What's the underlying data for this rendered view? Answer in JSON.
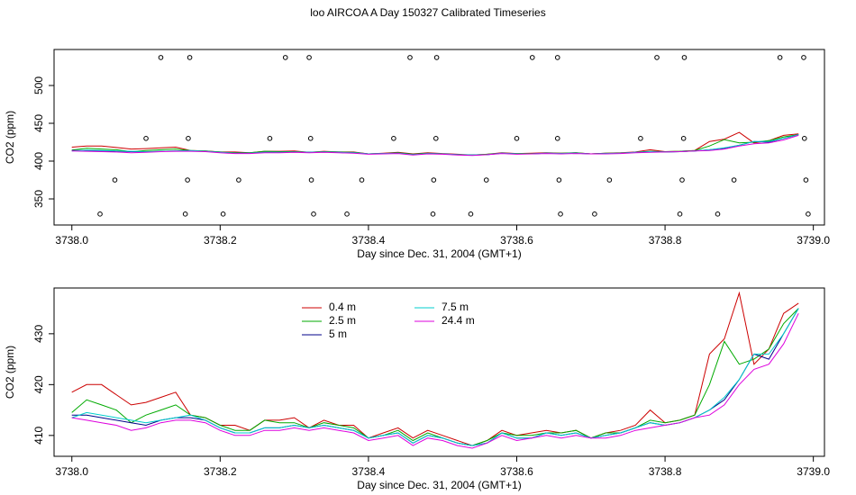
{
  "chart_data": [
    {
      "type": "line",
      "title": "loo AIRCOA A  Day 150327  Calibrated Timeseries",
      "xlabel": "Day since Dec. 31, 2004 (GMT+1)",
      "ylabel": "CO2 (ppm)",
      "xlim": [
        3737.976,
        3739.015
      ],
      "ylim": [
        315.5,
        547.6
      ],
      "xticks": [
        {
          "value": 3738,
          "label": "3738.0"
        },
        3738.2,
        3738.4,
        3738.6,
        3738.8,
        {
          "value": 3739,
          "label": "3739.0"
        }
      ],
      "yticks": [
        350,
        400,
        450,
        500
      ],
      "markers": {
        "x": [
          3738.12,
          3738.159,
          3738.288,
          3738.32,
          3738.456,
          3738.492,
          3738.621,
          3738.655,
          3738.789,
          3738.826,
          3738.955,
          3738.987,
          3738.1,
          3738.157,
          3738.267,
          3738.322,
          3738.434,
          3738.491,
          3738.6,
          3738.655,
          3738.767,
          3738.825,
          3738.988,
          3738.058,
          3738.156,
          3738.225,
          3738.323,
          3738.391,
          3738.488,
          3738.559,
          3738.657,
          3738.725,
          3738.823,
          3738.893,
          3738.99,
          3738.038,
          3738.153,
          3738.204,
          3738.326,
          3738.371,
          3738.487,
          3738.538,
          3738.659,
          3738.705,
          3738.82,
          3738.871,
          3738.993
        ],
        "y": [
          537,
          537,
          537,
          537,
          537,
          537,
          537,
          537,
          537,
          537,
          537,
          537,
          430,
          430,
          430,
          430,
          430,
          430,
          430,
          430,
          430,
          430,
          430,
          375,
          375,
          375,
          375,
          375,
          375,
          375,
          375,
          375,
          375,
          375,
          375,
          330,
          330,
          330,
          330,
          330,
          330,
          330,
          330,
          330,
          330,
          330,
          330
        ]
      }
    },
    {
      "type": "line",
      "xlabel": "Day since Dec. 31, 2004 (GMT+1)",
      "ylabel": "CO2 (ppm)",
      "xlim": [
        3737.976,
        3739.015
      ],
      "ylim": [
        405.9,
        439.0
      ],
      "xticks": [
        {
          "value": 3738,
          "label": "3738.0"
        },
        3738.2,
        3738.4,
        3738.6,
        3738.8,
        {
          "value": 3739,
          "label": "3739.0"
        }
      ],
      "yticks": [
        410,
        420,
        430
      ],
      "x": [
        3738.0,
        3738.02,
        3738.04,
        3738.06,
        3738.08,
        3738.1,
        3738.12,
        3738.14,
        3738.16,
        3738.18,
        3738.2,
        3738.22,
        3738.24,
        3738.26,
        3738.28,
        3738.3,
        3738.32,
        3738.34,
        3738.36,
        3738.38,
        3738.4,
        3738.42,
        3738.44,
        3738.46,
        3738.48,
        3738.5,
        3738.52,
        3738.54,
        3738.56,
        3738.58,
        3738.6,
        3738.62,
        3738.64,
        3738.66,
        3738.68,
        3738.7,
        3738.72,
        3738.74,
        3738.76,
        3738.78,
        3738.8,
        3738.82,
        3738.84,
        3738.86,
        3738.88,
        3738.9,
        3738.92,
        3738.94,
        3738.96,
        3738.98
      ],
      "series": [
        {
          "name": "0.4 m",
          "color": "#cc0000",
          "values": [
            418.5,
            420,
            420,
            418,
            416,
            416.5,
            417.5,
            418.5,
            414,
            413.5,
            412,
            412,
            411,
            413,
            413,
            413.5,
            411.5,
            413,
            412,
            412,
            409.5,
            410.5,
            411.5,
            409.5,
            411,
            410,
            409,
            408,
            409,
            411,
            410,
            410.5,
            411,
            410.5,
            411,
            409.5,
            410.5,
            411,
            412,
            415,
            412.5,
            413,
            414,
            426,
            429,
            438,
            424,
            427,
            434,
            436
          ]
        },
        {
          "name": "2.5 m",
          "color": "#00aa00",
          "values": [
            414.5,
            417,
            416,
            415,
            412.5,
            414,
            415,
            416,
            414,
            413.5,
            412,
            411,
            411,
            413,
            412.5,
            412.5,
            411.5,
            412.5,
            412,
            411.5,
            409.5,
            410,
            411,
            409,
            410.5,
            409.5,
            408.5,
            408,
            409,
            410.5,
            410,
            410,
            410.5,
            410.5,
            411,
            409.5,
            410.5,
            410.5,
            411.5,
            413,
            412.5,
            413,
            414,
            420,
            428.5,
            424,
            425,
            427,
            432,
            435
          ]
        },
        {
          "name": "5 m",
          "color": "#000088",
          "values": [
            414,
            414,
            413.5,
            413,
            412.5,
            412,
            413,
            413.5,
            413.5,
            413,
            411.5,
            410.5,
            410.5,
            411.5,
            411.5,
            412,
            411.5,
            412,
            411.5,
            411,
            409.5,
            410,
            410.5,
            408.5,
            410,
            409.5,
            408.5,
            408,
            408.5,
            410.5,
            409.5,
            409.5,
            410.5,
            410,
            410.5,
            409.5,
            410,
            410.5,
            411.5,
            412.5,
            412,
            412.5,
            413.5,
            415,
            417,
            421,
            426,
            425,
            430,
            435
          ]
        },
        {
          "name": "7.5 m",
          "color": "#00cccc",
          "values": [
            413.5,
            414.5,
            414,
            413.5,
            413,
            412.5,
            413,
            413.5,
            414,
            413,
            411.5,
            410.5,
            410.5,
            411.5,
            411.5,
            412,
            411.5,
            412,
            411.5,
            411,
            409.5,
            410,
            410.5,
            408.5,
            410,
            409.5,
            408.5,
            408,
            408.5,
            410.5,
            409.5,
            409.5,
            410.5,
            410,
            410.5,
            409.5,
            410,
            410.5,
            411.5,
            412.5,
            412,
            412.5,
            413.5,
            415,
            417.5,
            421,
            426,
            426,
            430,
            435
          ]
        },
        {
          "name": "24.4 m",
          "color": "#dd00dd",
          "values": [
            413.5,
            413,
            412.5,
            412,
            411,
            411.5,
            412.5,
            413,
            413,
            412.5,
            411,
            410,
            410,
            411,
            411,
            411.5,
            411,
            411.5,
            411,
            410.5,
            409,
            409.5,
            410,
            408,
            409.5,
            409,
            408,
            407.5,
            408.5,
            410,
            409,
            409.5,
            410,
            409.5,
            410,
            409.5,
            409.5,
            410,
            411,
            411.5,
            412,
            412.5,
            413.5,
            414,
            416,
            420,
            423,
            424,
            428,
            434
          ]
        }
      ]
    }
  ]
}
